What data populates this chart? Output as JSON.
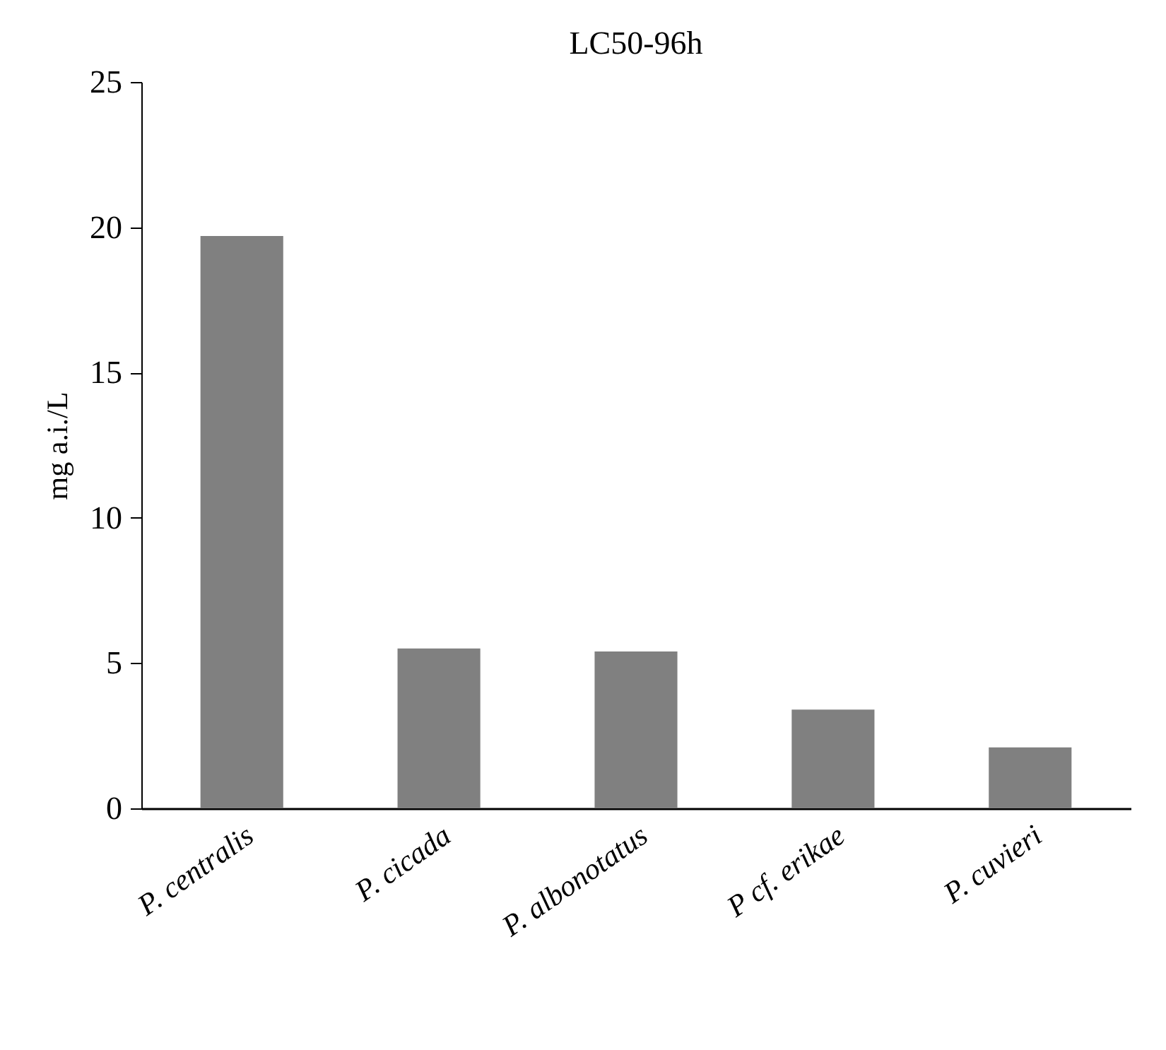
{
  "chart_data": {
    "type": "bar",
    "title": "LC50-96h",
    "ylabel": "mg a.i./L",
    "categories": [
      "P. centralis",
      "P. cicada",
      "P. albonotatus",
      "P cf. erikae",
      "P. cuvieri"
    ],
    "values": [
      19.7,
      5.5,
      5.4,
      3.4,
      2.1
    ],
    "color": "#808080",
    "ylim": [
      0,
      25
    ],
    "yticks": [
      0,
      5,
      10,
      15,
      20,
      25
    ],
    "grid": false
  }
}
